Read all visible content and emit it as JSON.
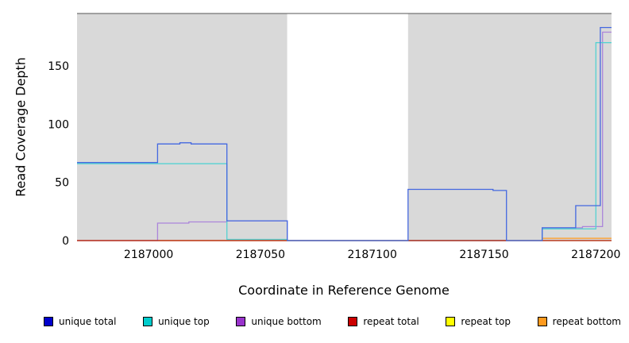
{
  "chart_data": {
    "type": "line",
    "subtype": "step-coverage-plot",
    "title": "",
    "xlabel": "Coordinate in Reference Genome",
    "ylabel": "Read Coverage Depth",
    "xlim": [
      2186968,
      2187207
    ],
    "ylim": [
      0,
      195
    ],
    "grid": false,
    "top_spine_color": "#555555",
    "x_ticks": [
      {
        "value": 2187000,
        "label": "2187000"
      },
      {
        "value": 2187050,
        "label": "2187050"
      },
      {
        "value": 2187100,
        "label": "2187100"
      },
      {
        "value": 2187150,
        "label": "2187150"
      },
      {
        "value": 2187200,
        "label": "2187200"
      }
    ],
    "y_ticks": [
      {
        "value": 0,
        "label": "0"
      },
      {
        "value": 50,
        "label": "50"
      },
      {
        "value": 100,
        "label": "100"
      },
      {
        "value": 150,
        "label": "150"
      }
    ],
    "background_regions": [
      {
        "name": "covered-left",
        "x0": 2186968,
        "x1": 2187062,
        "color": "#d9d9d9"
      },
      {
        "name": "zero-coverage-gap",
        "x0": 2187062,
        "x1": 2187116,
        "color": "#ffffff"
      },
      {
        "name": "covered-right",
        "x0": 2187116,
        "x1": 2187207,
        "color": "#d9d9d9"
      }
    ],
    "series": [
      {
        "key": "repeat-top",
        "name": "repeat top",
        "color": "#e8e800",
        "steps": [
          [
            2186968,
            0
          ]
        ]
      },
      {
        "key": "repeat-bottom",
        "name": "repeat bottom",
        "color": "#ff9a1e",
        "steps": [
          [
            2186968,
            0
          ],
          [
            2187176,
            2
          ]
        ]
      },
      {
        "key": "unique-bottom",
        "name": "unique bottom",
        "color": "#ab85da",
        "steps": [
          [
            2186968,
            0
          ],
          [
            2187004,
            15
          ],
          [
            2187018,
            16
          ],
          [
            2187035,
            17
          ],
          [
            2187062,
            0
          ],
          [
            2187176,
            11
          ],
          [
            2187194,
            12
          ],
          [
            2187203,
            179
          ]
        ]
      },
      {
        "key": "unique-top",
        "name": "unique top",
        "color": "#55d2d2",
        "steps": [
          [
            2186968,
            66
          ],
          [
            2187035,
            1
          ],
          [
            2187062,
            0
          ],
          [
            2187176,
            10
          ],
          [
            2187200,
            170
          ]
        ]
      },
      {
        "key": "repeat-total",
        "name": "repeat total",
        "color": "#b01818",
        "steps": [
          [
            2186968,
            0
          ]
        ]
      },
      {
        "key": "unique-total",
        "name": "unique total",
        "color": "#4468e0",
        "steps": [
          [
            2186968,
            67
          ],
          [
            2187004,
            83
          ],
          [
            2187014,
            84
          ],
          [
            2187019,
            83
          ],
          [
            2187035,
            17
          ],
          [
            2187062,
            0
          ],
          [
            2187116,
            44
          ],
          [
            2187154,
            43
          ],
          [
            2187160,
            0
          ],
          [
            2187176,
            11
          ],
          [
            2187191,
            30
          ],
          [
            2187202,
            183
          ]
        ]
      }
    ],
    "legend": {
      "position": "bottom",
      "items": [
        {
          "label": "unique total",
          "swatch_color": "#0000cc"
        },
        {
          "label": "unique top",
          "swatch_color": "#00cccc"
        },
        {
          "label": "unique bottom",
          "swatch_color": "#9933cc"
        },
        {
          "label": "repeat total",
          "swatch_color": "#cc0000"
        },
        {
          "label": "repeat top",
          "swatch_color": "#ffff00"
        },
        {
          "label": "repeat bottom",
          "swatch_color": "#ff9a1e"
        }
      ]
    }
  }
}
